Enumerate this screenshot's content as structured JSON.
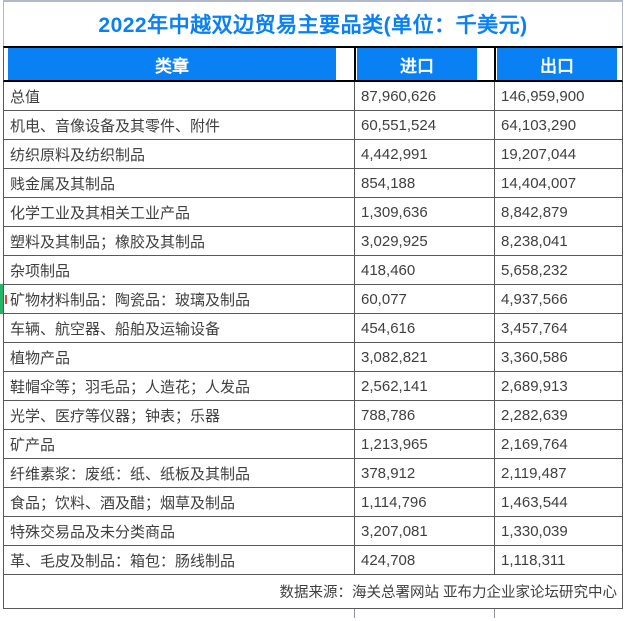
{
  "title": "2022年中越双边贸易主要品类(单位：千美元)",
  "footer": {
    "source": "数据来源：海关总署网站 亚布力企业家论坛研究中心"
  },
  "colors": {
    "accent_blue": "#0a80f5",
    "header_text": "#ffffff",
    "body_text": "#3f3f3f",
    "grid_border": "#595959",
    "header_border": "#000000",
    "title_outer_border": "#b2b8c8",
    "green_marker": "#27b467",
    "red_marker": "#e0443c"
  },
  "chart_data": {
    "type": "table",
    "title": "2022年中越双边贸易主要品类(单位：千美元)",
    "unit": "千美元",
    "columns": [
      "类章",
      "进口",
      "出口"
    ],
    "rows": [
      [
        "总值",
        "87,960,626",
        "146,959,900"
      ],
      [
        "机电、音像设备及其零件、附件",
        "60,551,524",
        "64,103,290"
      ],
      [
        "纺织原料及纺织制品",
        "4,442,991",
        "19,207,044"
      ],
      [
        "贱金属及其制品",
        "854,188",
        "14,404,007"
      ],
      [
        "化学工业及其相关工业产品",
        "1,309,636",
        "8,842,879"
      ],
      [
        "塑料及其制品；橡胶及其制品",
        "3,029,925",
        "8,238,041"
      ],
      [
        "杂项制品",
        "418,460",
        "5,658,232"
      ],
      [
        "矿物材料制品：陶瓷品：玻璃及制品",
        "60,077",
        "4,937,566"
      ],
      [
        "车辆、航空器、船舶及运输设备",
        "454,616",
        "3,457,764"
      ],
      [
        "植物产品",
        "3,082,821",
        "3,360,586"
      ],
      [
        "鞋帽伞等；羽毛品；人造花；人发品",
        "2,562,141",
        "2,689,913"
      ],
      [
        "光学、医疗等仪器；钟表；乐器",
        "788,786",
        "2,282,639"
      ],
      [
        "矿产品",
        "1,213,965",
        "2,169,764"
      ],
      [
        "纤维素浆：废纸：纸、纸板及其制品",
        "378,912",
        "2,119,487"
      ],
      [
        "食品；饮料、酒及醋；烟草及制品",
        "1,114,796",
        "1,463,544"
      ],
      [
        "特殊交易品及未分类商品",
        "3,207,081",
        "1,330,039"
      ],
      [
        "革、毛皮及制品：箱包：肠线制品",
        "424,708",
        "1,118,311"
      ]
    ]
  }
}
